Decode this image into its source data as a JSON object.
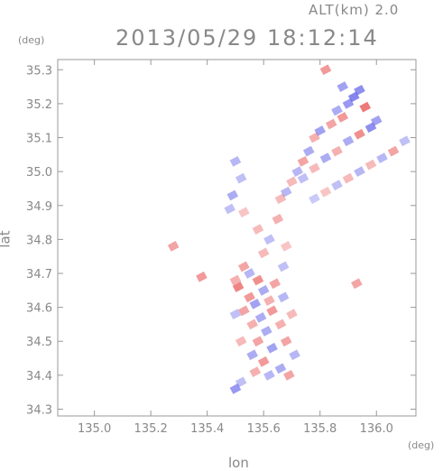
{
  "header": {
    "altitude": "ALT(km) 2.0",
    "datetime": "2013/05/29 18:12:14"
  },
  "axes": {
    "x_unit": "(deg)",
    "y_unit": "(deg)",
    "x_label": "lon",
    "y_label": "lat"
  },
  "chart_data": {
    "type": "heatmap",
    "xlabel": "lon",
    "ylabel": "lat",
    "xlim": [
      134.87,
      136.14
    ],
    "ylim": [
      34.28,
      35.33
    ],
    "x_ticks": [
      "135.0",
      "135.2",
      "135.4",
      "135.6",
      "135.8",
      "136.0"
    ],
    "y_ticks": [
      "34.3",
      "34.4",
      "34.5",
      "34.6",
      "34.7",
      "34.8",
      "34.9",
      "35.0",
      "35.1",
      "35.2",
      "35.3"
    ],
    "colors": {
      "positive": "#e84a4a",
      "negative": "#5a5ae8",
      "frame": "#999999"
    },
    "cells": [
      {
        "lon": 135.92,
        "lat": 35.22,
        "v": -0.9
      },
      {
        "lon": 135.94,
        "lat": 35.24,
        "v": -0.8
      },
      {
        "lon": 135.9,
        "lat": 35.2,
        "v": -0.7
      },
      {
        "lon": 135.96,
        "lat": 35.19,
        "v": 0.9
      },
      {
        "lon": 135.86,
        "lat": 35.18,
        "v": -0.5
      },
      {
        "lon": 135.82,
        "lat": 35.3,
        "v": 0.6
      },
      {
        "lon": 135.88,
        "lat": 35.25,
        "v": -0.6
      },
      {
        "lon": 135.84,
        "lat": 35.14,
        "v": 0.5
      },
      {
        "lon": 135.8,
        "lat": 35.12,
        "v": -0.6
      },
      {
        "lon": 135.78,
        "lat": 35.1,
        "v": 0.4
      },
      {
        "lon": 135.76,
        "lat": 35.06,
        "v": -0.5
      },
      {
        "lon": 135.74,
        "lat": 35.03,
        "v": 0.5
      },
      {
        "lon": 135.72,
        "lat": 35.0,
        "v": -0.4
      },
      {
        "lon": 135.7,
        "lat": 34.97,
        "v": 0.3
      },
      {
        "lon": 135.68,
        "lat": 34.94,
        "v": -0.4
      },
      {
        "lon": 135.66,
        "lat": 34.92,
        "v": 0.3
      },
      {
        "lon": 135.98,
        "lat": 35.13,
        "v": -0.8
      },
      {
        "lon": 136.0,
        "lat": 35.15,
        "v": -0.6
      },
      {
        "lon": 135.94,
        "lat": 35.11,
        "v": 0.7
      },
      {
        "lon": 135.9,
        "lat": 35.09,
        "v": -0.5
      },
      {
        "lon": 135.86,
        "lat": 35.06,
        "v": 0.4
      },
      {
        "lon": 135.82,
        "lat": 35.04,
        "v": -0.5
      },
      {
        "lon": 135.78,
        "lat": 35.01,
        "v": 0.3
      },
      {
        "lon": 135.74,
        "lat": 34.98,
        "v": -0.3
      },
      {
        "lon": 136.06,
        "lat": 35.06,
        "v": 0.5
      },
      {
        "lon": 136.02,
        "lat": 35.04,
        "v": -0.4
      },
      {
        "lon": 135.98,
        "lat": 35.02,
        "v": 0.3
      },
      {
        "lon": 135.94,
        "lat": 35.0,
        "v": -0.4
      },
      {
        "lon": 135.9,
        "lat": 34.98,
        "v": 0.3
      },
      {
        "lon": 135.86,
        "lat": 34.96,
        "v": -0.3
      },
      {
        "lon": 135.82,
        "lat": 34.94,
        "v": 0.2
      },
      {
        "lon": 135.78,
        "lat": 34.92,
        "v": -0.2
      },
      {
        "lon": 136.1,
        "lat": 35.09,
        "v": -0.3
      },
      {
        "lon": 135.88,
        "lat": 35.16,
        "v": 0.6
      },
      {
        "lon": 135.5,
        "lat": 35.03,
        "v": -0.4
      },
      {
        "lon": 135.52,
        "lat": 34.98,
        "v": -0.3
      },
      {
        "lon": 135.49,
        "lat": 34.93,
        "v": -0.5
      },
      {
        "lon": 135.53,
        "lat": 34.88,
        "v": 0.2
      },
      {
        "lon": 135.48,
        "lat": 34.89,
        "v": -0.3
      },
      {
        "lon": 135.58,
        "lat": 34.83,
        "v": 0.3
      },
      {
        "lon": 135.62,
        "lat": 34.8,
        "v": -0.3
      },
      {
        "lon": 135.65,
        "lat": 34.86,
        "v": 0.4
      },
      {
        "lon": 135.6,
        "lat": 34.76,
        "v": 0.3
      },
      {
        "lon": 135.68,
        "lat": 34.78,
        "v": 0.2
      },
      {
        "lon": 135.28,
        "lat": 34.78,
        "v": 0.5
      },
      {
        "lon": 135.38,
        "lat": 34.69,
        "v": 0.6
      },
      {
        "lon": 135.53,
        "lat": 34.72,
        "v": 0.5
      },
      {
        "lon": 135.55,
        "lat": 34.7,
        "v": -0.4
      },
      {
        "lon": 135.58,
        "lat": 34.68,
        "v": 0.7
      },
      {
        "lon": 135.51,
        "lat": 34.66,
        "v": 0.8
      },
      {
        "lon": 135.6,
        "lat": 34.65,
        "v": -0.5
      },
      {
        "lon": 135.64,
        "lat": 34.67,
        "v": 0.5
      },
      {
        "lon": 135.55,
        "lat": 34.63,
        "v": 0.6
      },
      {
        "lon": 135.57,
        "lat": 34.61,
        "v": -0.6
      },
      {
        "lon": 135.62,
        "lat": 34.62,
        "v": 0.4
      },
      {
        "lon": 135.67,
        "lat": 34.63,
        "v": -0.4
      },
      {
        "lon": 135.53,
        "lat": 34.59,
        "v": 0.5
      },
      {
        "lon": 135.59,
        "lat": 34.57,
        "v": -0.5
      },
      {
        "lon": 135.63,
        "lat": 34.59,
        "v": 0.6
      },
      {
        "lon": 135.56,
        "lat": 34.55,
        "v": 0.4
      },
      {
        "lon": 135.61,
        "lat": 34.53,
        "v": -0.5
      },
      {
        "lon": 135.66,
        "lat": 34.55,
        "v": 0.4
      },
      {
        "lon": 135.58,
        "lat": 34.5,
        "v": 0.5
      },
      {
        "lon": 135.63,
        "lat": 34.48,
        "v": -0.6
      },
      {
        "lon": 135.68,
        "lat": 34.5,
        "v": 0.5
      },
      {
        "lon": 135.71,
        "lat": 34.46,
        "v": -0.4
      },
      {
        "lon": 135.56,
        "lat": 34.46,
        "v": -0.5
      },
      {
        "lon": 135.6,
        "lat": 34.44,
        "v": 0.6
      },
      {
        "lon": 135.66,
        "lat": 34.42,
        "v": -0.5
      },
      {
        "lon": 135.69,
        "lat": 34.4,
        "v": 0.5
      },
      {
        "lon": 135.62,
        "lat": 34.4,
        "v": -0.4
      },
      {
        "lon": 135.57,
        "lat": 34.41,
        "v": 0.4
      },
      {
        "lon": 135.52,
        "lat": 34.38,
        "v": -0.3
      },
      {
        "lon": 135.5,
        "lat": 34.36,
        "v": -0.7
      },
      {
        "lon": 135.52,
        "lat": 34.5,
        "v": 0.3
      },
      {
        "lon": 135.5,
        "lat": 34.58,
        "v": -0.3
      },
      {
        "lon": 135.5,
        "lat": 34.68,
        "v": 0.4
      },
      {
        "lon": 135.7,
        "lat": 34.58,
        "v": 0.3
      },
      {
        "lon": 135.93,
        "lat": 34.67,
        "v": 0.5
      },
      {
        "lon": 135.67,
        "lat": 34.72,
        "v": -0.3
      }
    ]
  }
}
